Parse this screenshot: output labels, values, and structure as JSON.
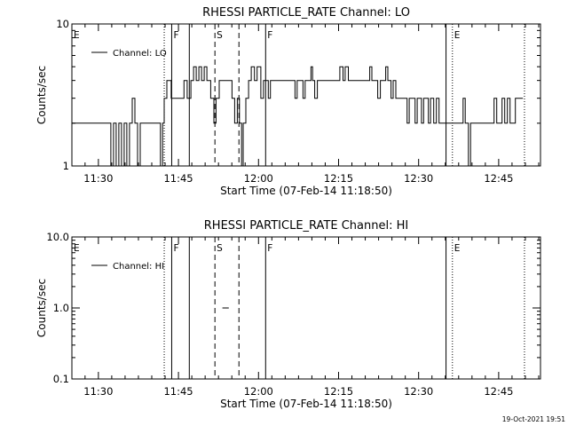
{
  "footer": {
    "timestamp": "19-Oct-2021 19:51"
  },
  "chart_data": [
    {
      "type": "line",
      "title": "RHESSI PARTICLE_RATE Channel: LO",
      "xlabel": "Start Time (07-Feb-14 11:18:50)",
      "ylabel": "Counts/sec",
      "y_scale": "log",
      "ylim": [
        1,
        10
      ],
      "y_ticks": [
        {
          "v": 1,
          "label": "1"
        },
        {
          "v": 10,
          "label": "10"
        }
      ],
      "xlim_minutes_after_start": [
        6.2,
        94
      ],
      "x_tick_labels": [
        "11:30",
        "11:45",
        "12:00",
        "12:15",
        "12:30",
        "12:45"
      ],
      "legend": {
        "position": "top-left",
        "entries": [
          "Channel: LO"
        ]
      },
      "grid": false,
      "event_markers": [
        {
          "label": "E",
          "style": "none",
          "min": 6.2
        },
        {
          "label": "",
          "style": "dotted",
          "min": 23.5
        },
        {
          "label": "F",
          "style": "solid",
          "min": 24.9
        },
        {
          "label": "",
          "style": "solid",
          "min": 28.2
        },
        {
          "label": "S",
          "style": "dashed",
          "min": 33.0
        },
        {
          "label": "",
          "style": "dashed",
          "min": 37.5
        },
        {
          "label": "F",
          "style": "solid",
          "min": 42.5
        },
        {
          "label": "",
          "style": "solid",
          "min": 76.3
        },
        {
          "label": "E",
          "style": "dotted",
          "min": 77.5
        },
        {
          "label": "",
          "style": "dotted",
          "min": 91.0
        }
      ],
      "series": [
        {
          "name": "Channel: LO",
          "step": [
            [
              6.2,
              2
            ],
            [
              13.5,
              1
            ],
            [
              14.0,
              2
            ],
            [
              14.5,
              1
            ],
            [
              15.0,
              2
            ],
            [
              15.5,
              1
            ],
            [
              16.0,
              2
            ],
            [
              16.5,
              1
            ],
            [
              17.0,
              2
            ],
            [
              17.5,
              3
            ],
            [
              18.0,
              2
            ],
            [
              18.5,
              1
            ],
            [
              19.0,
              2
            ],
            [
              22.8,
              1
            ],
            [
              23.2,
              2
            ],
            [
              23.5,
              3
            ],
            [
              24.0,
              4
            ],
            [
              24.8,
              3
            ],
            [
              27.2,
              4
            ],
            [
              27.8,
              3
            ],
            [
              28.5,
              4
            ],
            [
              29.0,
              5
            ],
            [
              29.5,
              4
            ],
            [
              30.0,
              5
            ],
            [
              30.5,
              4
            ],
            [
              31.0,
              5
            ],
            [
              31.5,
              4
            ],
            [
              32.2,
              3
            ],
            [
              32.8,
              2
            ],
            [
              33.2,
              3
            ],
            [
              33.8,
              4
            ],
            [
              36.2,
              3
            ],
            [
              36.7,
              2
            ],
            [
              37.2,
              3
            ],
            [
              37.6,
              2
            ],
            [
              38.0,
              1
            ],
            [
              38.3,
              2
            ],
            [
              38.8,
              3
            ],
            [
              39.3,
              4
            ],
            [
              39.8,
              5
            ],
            [
              40.4,
              4
            ],
            [
              40.9,
              5
            ],
            [
              41.6,
              3
            ],
            [
              42.1,
              4
            ],
            [
              43.0,
              3
            ],
            [
              43.4,
              4
            ],
            [
              48.0,
              3
            ],
            [
              48.4,
              4
            ],
            [
              49.5,
              3
            ],
            [
              49.9,
              4
            ],
            [
              51.0,
              5
            ],
            [
              51.3,
              4
            ],
            [
              51.7,
              3
            ],
            [
              52.2,
              4
            ],
            [
              56.4,
              5
            ],
            [
              57.0,
              4
            ],
            [
              57.4,
              5
            ],
            [
              58.0,
              4
            ],
            [
              62.0,
              5
            ],
            [
              62.4,
              4
            ],
            [
              63.5,
              3
            ],
            [
              64.0,
              4
            ],
            [
              65.0,
              5
            ],
            [
              65.4,
              4
            ],
            [
              66.0,
              3
            ],
            [
              66.4,
              4
            ],
            [
              66.9,
              3
            ],
            [
              69.0,
              2
            ],
            [
              69.4,
              3
            ],
            [
              70.5,
              2
            ],
            [
              70.9,
              3
            ],
            [
              71.7,
              2
            ],
            [
              72.1,
              3
            ],
            [
              73.0,
              2
            ],
            [
              73.4,
              3
            ],
            [
              74.0,
              2
            ],
            [
              74.5,
              3
            ],
            [
              75.0,
              2
            ],
            [
              79.5,
              3
            ],
            [
              79.9,
              2
            ],
            [
              80.5,
              1
            ],
            [
              80.9,
              2
            ],
            [
              85.3,
              3
            ],
            [
              85.8,
              2
            ],
            [
              86.8,
              3
            ],
            [
              87.3,
              2
            ],
            [
              87.8,
              3
            ],
            [
              88.3,
              2
            ],
            [
              89.3,
              3
            ]
          ],
          "end_min": 90.7
        }
      ]
    },
    {
      "type": "line",
      "title": "RHESSI PARTICLE_RATE Channel: HI",
      "xlabel": "Start Time (07-Feb-14 11:18:50)",
      "ylabel": "Counts/sec",
      "y_scale": "log",
      "ylim": [
        0.1,
        10
      ],
      "y_ticks": [
        {
          "v": 0.1,
          "label": "0.1"
        },
        {
          "v": 1,
          "label": "1.0"
        },
        {
          "v": 10,
          "label": "10.0"
        }
      ],
      "xlim_minutes_after_start": [
        6.2,
        94
      ],
      "x_tick_labels": [
        "11:30",
        "11:45",
        "12:00",
        "12:15",
        "12:30",
        "12:45"
      ],
      "legend": {
        "position": "top-left",
        "entries": [
          "Channel: HI"
        ]
      },
      "grid": false,
      "event_markers": [
        {
          "label": "E",
          "style": "none",
          "min": 6.2
        },
        {
          "label": "",
          "style": "dotted",
          "min": 23.5
        },
        {
          "label": "F",
          "style": "solid",
          "min": 24.9
        },
        {
          "label": "",
          "style": "solid",
          "min": 28.2
        },
        {
          "label": "S",
          "style": "dashed",
          "min": 33.0
        },
        {
          "label": "",
          "style": "dashed",
          "min": 37.5
        },
        {
          "label": "F",
          "style": "solid",
          "min": 42.5
        },
        {
          "label": "",
          "style": "solid",
          "min": 76.3
        },
        {
          "label": "E",
          "style": "dotted",
          "min": 77.5
        },
        {
          "label": "",
          "style": "dotted",
          "min": 91.0
        }
      ],
      "series": [
        {
          "name": "Channel: HI",
          "segments": [
            [
              [
                34.4,
                1
              ],
              [
                35.6,
                1
              ]
            ]
          ]
        }
      ]
    }
  ]
}
